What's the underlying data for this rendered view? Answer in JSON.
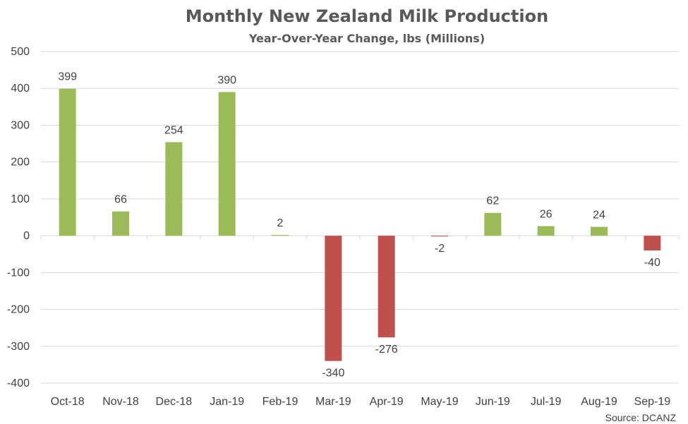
{
  "chart_data": {
    "type": "bar",
    "title": "Monthly New Zealand Milk Production",
    "subtitle": "Year-Over-Year Change, lbs (Millions)",
    "source": "Source: DCANZ",
    "categories": [
      "Oct-18",
      "Nov-18",
      "Dec-18",
      "Jan-19",
      "Feb-19",
      "Mar-19",
      "Apr-19",
      "May-19",
      "Jun-19",
      "Jul-19",
      "Aug-19",
      "Sep-19"
    ],
    "values": [
      399,
      66,
      254,
      390,
      2,
      -340,
      -276,
      -2,
      62,
      26,
      24,
      -40
    ],
    "ylim": [
      -400,
      500
    ],
    "yticks": [
      500,
      400,
      300,
      200,
      100,
      0,
      -100,
      -200,
      -300,
      -400
    ],
    "grid": true,
    "legend": "none",
    "colors": {
      "positive": "#9bbb59",
      "negative": "#c0504d"
    }
  }
}
